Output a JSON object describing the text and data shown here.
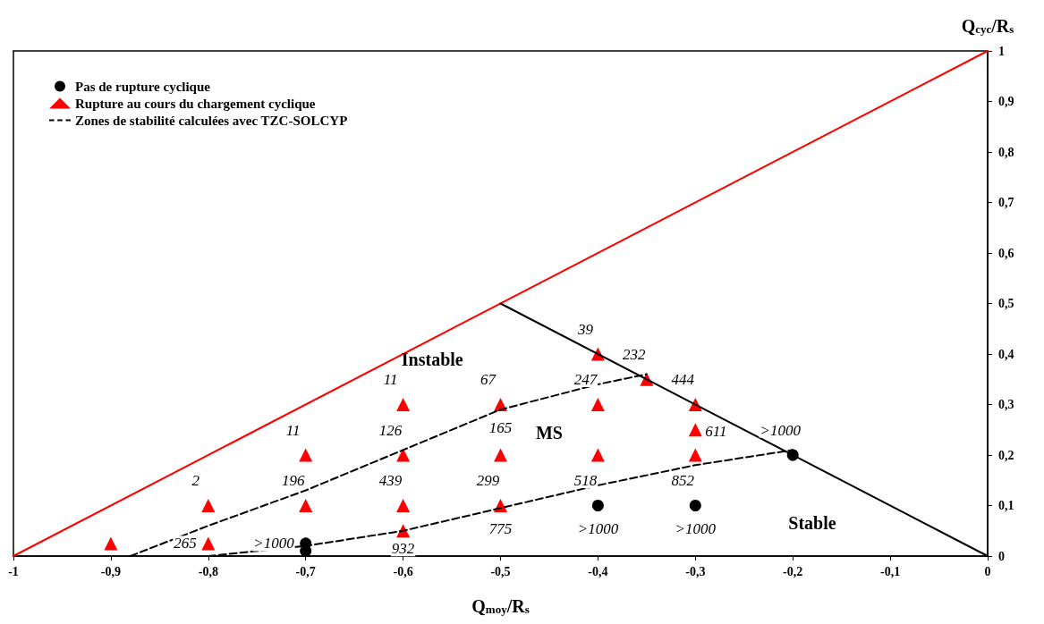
{
  "chart_data": {
    "type": "scatter",
    "xlabel": "Q$_{moy}$/R$_{s}$",
    "ylabel": "Q$_{cyc}$/R$_{s}$",
    "xlim": [
      -1,
      0
    ],
    "ylim": [
      0,
      1
    ],
    "xticks": [
      {
        "value": -1,
        "label": "-1"
      },
      {
        "value": -0.9,
        "label": "-0,9"
      },
      {
        "value": -0.8,
        "label": "-0,8"
      },
      {
        "value": -0.7,
        "label": "-0,7"
      },
      {
        "value": -0.6,
        "label": "-0,6"
      },
      {
        "value": -0.5,
        "label": "-0,5"
      },
      {
        "value": -0.4,
        "label": "-0,4"
      },
      {
        "value": -0.3,
        "label": "-0,3"
      },
      {
        "value": -0.2,
        "label": "-0,2"
      },
      {
        "value": -0.1,
        "label": "-0,1"
      },
      0
    ],
    "yticks": [
      0,
      {
        "value": 0.1,
        "label": "0,1"
      },
      {
        "value": 0.2,
        "label": "0,2"
      },
      {
        "value": 0.3,
        "label": "0,3"
      },
      {
        "value": 0.4,
        "label": "0,4"
      },
      {
        "value": 0.5,
        "label": "0,5"
      },
      {
        "value": 0.6,
        "label": "0,6"
      },
      {
        "value": 0.7,
        "label": "0,7"
      },
      {
        "value": 0.8,
        "label": "0,8"
      },
      {
        "value": 0.9,
        "label": "0,9"
      },
      1
    ],
    "grid": false,
    "legend": "top left",
    "series": [
      {
        "type": "line",
        "color": "#ff0000",
        "marker": "none",
        "line_style": "solid",
        "x": [
          -1,
          0
        ],
        "values": [
          0,
          1
        ]
      },
      {
        "type": "line",
        "color": "#000000",
        "marker": "none",
        "line_style": "solid",
        "x": [
          -0.5,
          0
        ],
        "values": [
          0.5,
          0
        ]
      },
      {
        "name": "Pas de rupture cyclique",
        "color": "#000000",
        "marker": "circle",
        "x": [
          -0.7,
          -0.7,
          -0.4,
          -0.3,
          -0.2
        ],
        "values": [
          0.025,
          0.01,
          0.1,
          0.1,
          0.2
        ]
      },
      {
        "name": "Rupture au cours du chargement cyclique",
        "color": "#ff0000",
        "marker": "triangle",
        "x": [
          -0.9,
          -0.8,
          -0.8,
          -0.7,
          -0.7,
          -0.6,
          -0.6,
          -0.6,
          -0.6,
          -0.5,
          -0.5,
          -0.5,
          -0.4,
          -0.4,
          -0.4,
          -0.35,
          -0.3,
          -0.3,
          -0.3
        ],
        "values": [
          0.025,
          0.025,
          0.1,
          0.1,
          0.2,
          0.05,
          0.1,
          0.2,
          0.3,
          0.1,
          0.2,
          0.3,
          0.2,
          0.3,
          0.4,
          0.35,
          0.2,
          0.25,
          0.3
        ]
      },
      {
        "name": "Zones de stabilité calculées avec TZC-SOLCYP",
        "type": "line",
        "color": "#000000",
        "marker": "none",
        "line_style": "dashed",
        "x": [
          -0.88,
          -0.8,
          -0.7,
          -0.6,
          -0.5,
          -0.4,
          -0.35
        ],
        "values": [
          0,
          0.06,
          0.13,
          0.21,
          0.29,
          0.34,
          0.36
        ]
      },
      {
        "type": "line",
        "color": "#000000",
        "marker": "none",
        "line_style": "dashed",
        "x": [
          -0.8,
          -0.7,
          -0.6,
          -0.5,
          -0.4,
          -0.3,
          -0.2
        ],
        "values": [
          0,
          0.02,
          0.05,
          0.095,
          0.14,
          0.18,
          0.21
        ]
      }
    ],
    "annotations": [
      "Instable",
      "MS",
      "Stable",
      {
        "text": "39",
        "x": -0.4,
        "y": 0.4
      },
      {
        "text": "232",
        "x": -0.35,
        "y": 0.35
      },
      {
        "text": "247",
        "x": -0.4,
        "y": 0.3
      },
      {
        "text": "67",
        "x": -0.5,
        "y": 0.3
      },
      {
        "text": "11",
        "x": -0.6,
        "y": 0.3
      },
      {
        "text": "444",
        "x": -0.3,
        "y": 0.3
      },
      {
        "text": "165",
        "x": -0.5,
        "y": 0.3
      },
      {
        "text": "126",
        "x": -0.6,
        "y": 0.2
      },
      {
        "text": "11",
        "x": -0.7,
        "y": 0.2
      },
      {
        "text": "611",
        "x": -0.3,
        "y": 0.25
      },
      {
        "text": "299",
        "x": -0.5,
        "y": 0.1
      },
      {
        "text": "518",
        "x": -0.4,
        "y": 0.1
      },
      {
        "text": "852",
        "x": -0.3,
        "y": 0.1
      },
      {
        "text": ">1000",
        "x": -0.2,
        "y": 0.2
      },
      {
        "text": "2",
        "x": -0.8,
        "y": 0.1
      },
      {
        "text": "196",
        "x": -0.7,
        "y": 0.1
      },
      {
        "text": "439",
        "x": -0.6,
        "y": 0.1
      },
      {
        "text": "775",
        "x": -0.5,
        "y": 0.1
      },
      {
        "text": ">1000",
        "x": -0.4,
        "y": 0.1
      },
      {
        "text": ">1000",
        "x": -0.3,
        "y": 0.1
      },
      {
        "text": "265",
        "x": -0.8,
        "y": 0.025
      },
      {
        "text": ">1000",
        "x": -0.7,
        "y": 0.025
      },
      {
        "text": "932",
        "x": -0.6,
        "y": 0.05
      }
    ]
  }
}
